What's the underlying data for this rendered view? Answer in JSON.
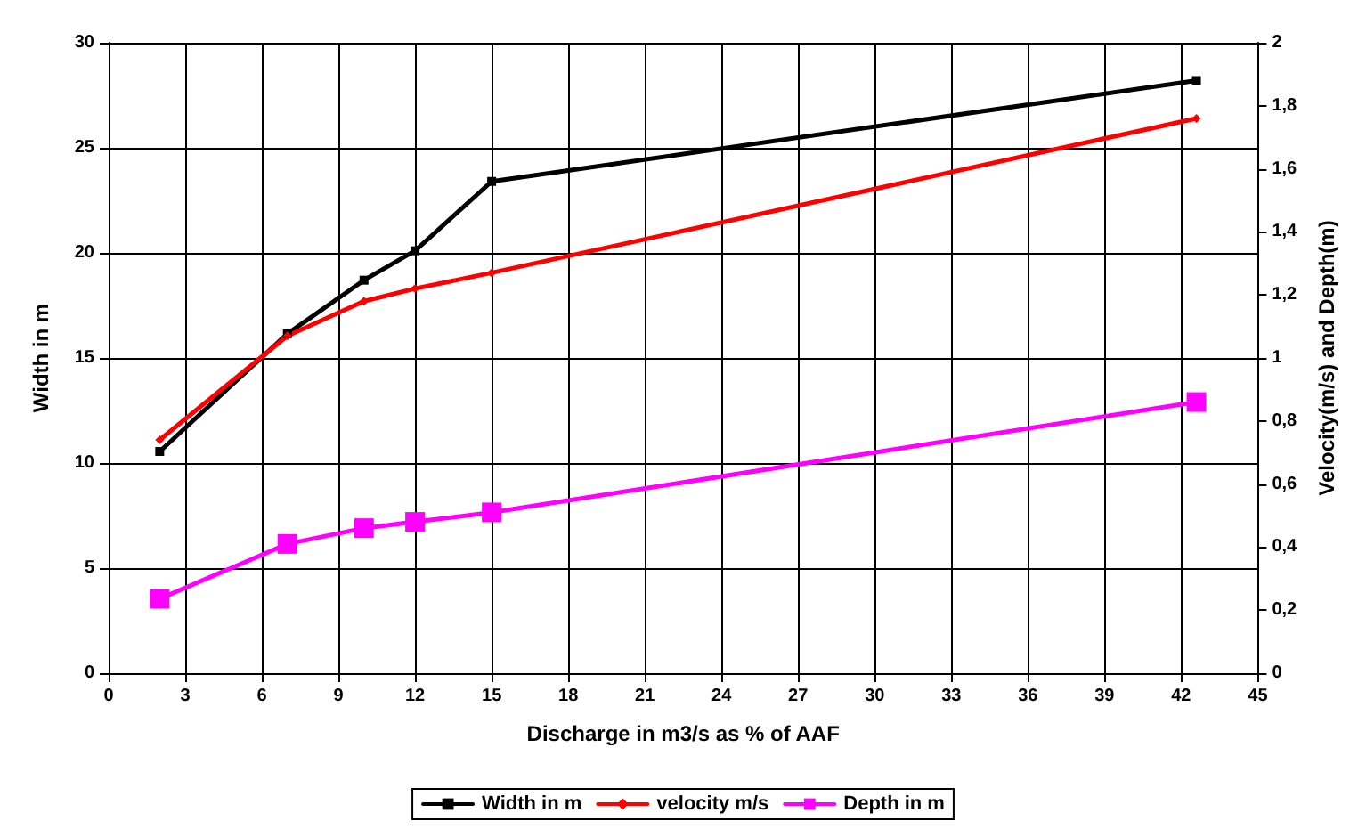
{
  "chart_data": {
    "type": "line",
    "xlabel": "Discharge in m3/s as % of AAF",
    "ylabel": "Width in m",
    "y2label": "Velocity(m/s) and Depth(m)",
    "x": [
      2,
      7,
      10,
      12,
      15,
      42.6
    ],
    "series": [
      {
        "name": "Width in m",
        "color": "#000000",
        "marker": "square",
        "values": [
          10.55,
          16.15,
          18.7,
          20.1,
          23.4,
          28.2
        ]
      },
      {
        "name": "velocity m/s",
        "color": "#ff0000",
        "marker": "diamond",
        "axis": "y2",
        "values": [
          0.74,
          1.07,
          1.18,
          1.22,
          1.27,
          1.76
        ]
      },
      {
        "name": "Depth in m",
        "color": "#ff00ff",
        "marker": "square",
        "axis": "y2",
        "values": [
          0.236,
          0.41,
          0.46,
          0.48,
          0.51,
          0.86
        ]
      }
    ],
    "xlim": [
      0,
      45
    ],
    "xticks": [
      0,
      3,
      6,
      9,
      12,
      15,
      18,
      21,
      24,
      27,
      30,
      33,
      36,
      39,
      42,
      45
    ],
    "ylim": [
      0,
      30
    ],
    "yticks": [
      0,
      5,
      10,
      15,
      20,
      25,
      30
    ],
    "y2lim": [
      0,
      2
    ],
    "y2ticks": [
      0,
      {
        "value": 0.2,
        "label": "0,2"
      },
      {
        "value": 0.4,
        "label": "0,4"
      },
      {
        "value": 0.6,
        "label": "0,6"
      },
      {
        "value": 0.8,
        "label": "0,8"
      },
      1,
      {
        "value": 1.2,
        "label": "1,2"
      },
      {
        "value": 1.4,
        "label": "1,4"
      },
      {
        "value": 1.6,
        "label": "1,6"
      },
      {
        "value": 1.8,
        "label": "1,8"
      },
      2
    ],
    "grid": true,
    "legend": "bottom",
    "line_style": "solid"
  }
}
